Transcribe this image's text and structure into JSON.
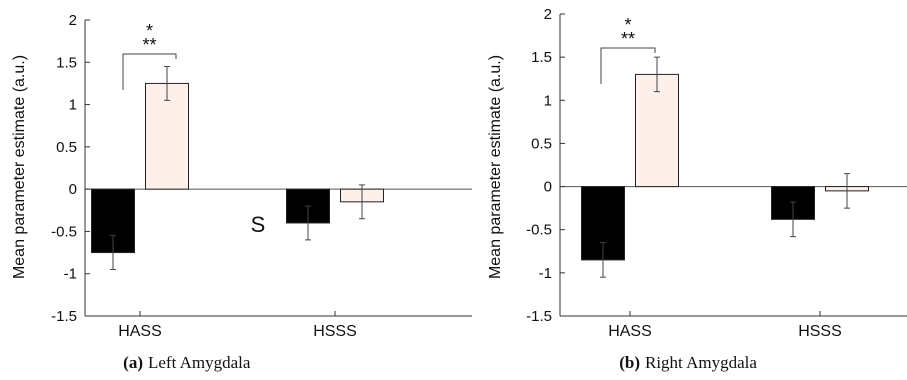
{
  "chart_data": [
    {
      "type": "bar",
      "panel": "(a)",
      "caption": "Left Amygdala",
      "categories": [
        "HASS",
        "HSSS"
      ],
      "series": [
        {
          "values": [
            -0.75,
            -0.4
          ],
          "errors": [
            0.2,
            0.2
          ],
          "color": "#000000"
        },
        {
          "values": [
            1.25,
            -0.15
          ],
          "errors": [
            0.2,
            0.2
          ],
          "color": "#fdf0ea"
        }
      ],
      "ylabel": "Mean parameter estimate (a.u.)",
      "ylim": [
        -1.5,
        2
      ],
      "yticks": [
        "-1.5",
        "-1",
        "-0.5",
        "0",
        "0.5",
        "1",
        "1.5",
        "2"
      ],
      "significance": [
        "*",
        "**"
      ],
      "stray_text": "S"
    },
    {
      "type": "bar",
      "panel": "(b)",
      "caption": "Right Amygdala",
      "categories": [
        "HASS",
        "HSSS"
      ],
      "series": [
        {
          "values": [
            -0.85,
            -0.38
          ],
          "errors": [
            0.2,
            0.2
          ],
          "color": "#000000"
        },
        {
          "values": [
            1.3,
            -0.05
          ],
          "errors": [
            0.2,
            0.2
          ],
          "color": "#fdf0ea"
        }
      ],
      "ylabel": "Mean parameter estimate (a.u.)",
      "ylim": [
        -1.5,
        2
      ],
      "yticks": [
        "-1.5",
        "-1",
        "-0.5",
        "0",
        "0.5",
        "1",
        "1.5",
        "2"
      ],
      "significance": [
        "*",
        "**"
      ]
    }
  ]
}
